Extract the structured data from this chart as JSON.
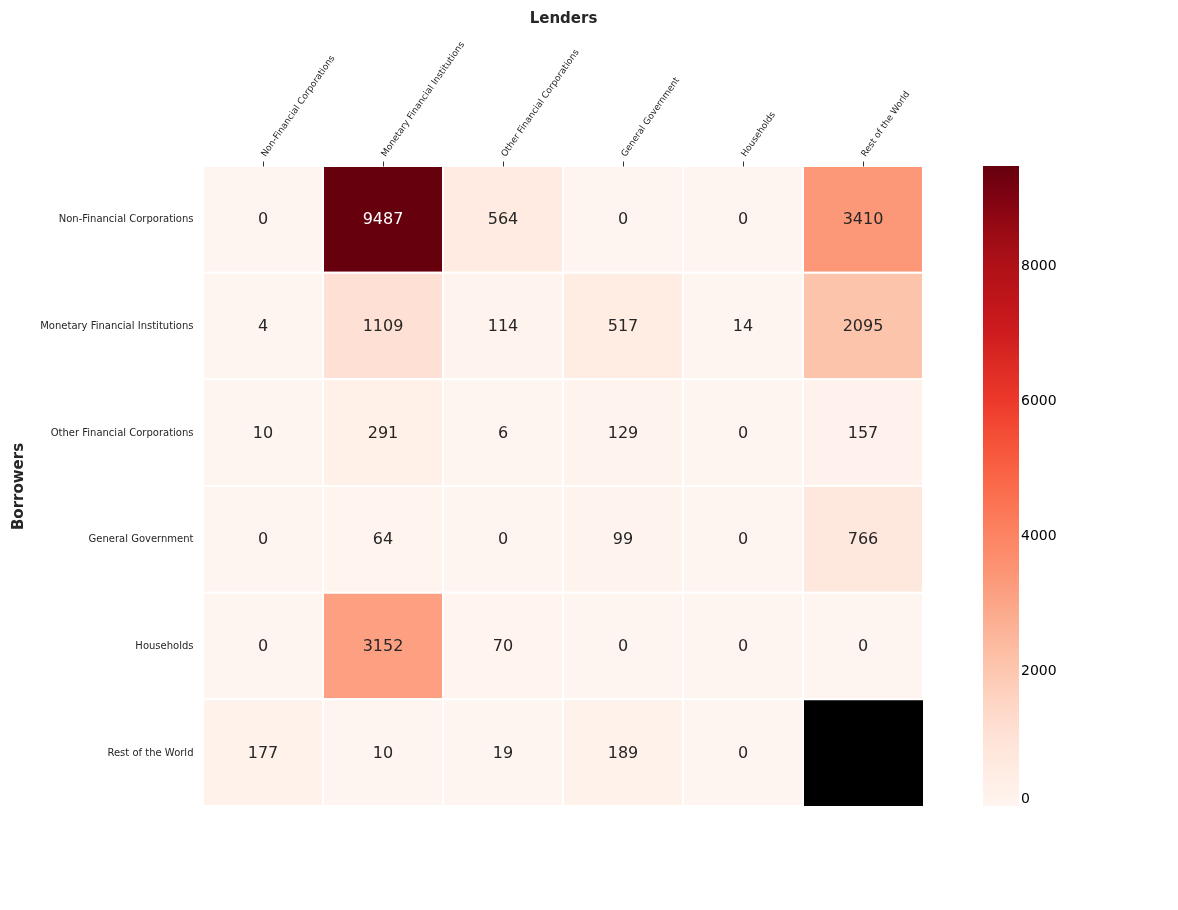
{
  "chart_data": {
    "type": "heatmap",
    "xlabel": "Lenders",
    "ylabel": "Borrowers",
    "categories": [
      "Non-Financial Corporations",
      "Monetary Financial Institutions",
      "Other Financial Corporations",
      "General Government",
      "Households",
      "Rest of the World"
    ],
    "y_categories": [
      "Non-Financial Corporations",
      "Monetary Financial Institutions",
      "Other Financial Corporations",
      "General Government",
      "Households",
      "Rest of the World"
    ],
    "cells": [
      [
        0,
        9487,
        564,
        0,
        0,
        3410
      ],
      [
        4,
        1109,
        114,
        517,
        14,
        2095
      ],
      [
        10,
        291,
        6,
        129,
        0,
        157
      ],
      [
        0,
        64,
        0,
        99,
        0,
        766
      ],
      [
        0,
        3152,
        70,
        0,
        0,
        0
      ],
      [
        177,
        10,
        19,
        189,
        0,
        null
      ]
    ],
    "clim": [
      0,
      9487
    ],
    "cticks": [
      0,
      2000,
      4000,
      6000,
      8000
    ],
    "data_labels": true
  }
}
